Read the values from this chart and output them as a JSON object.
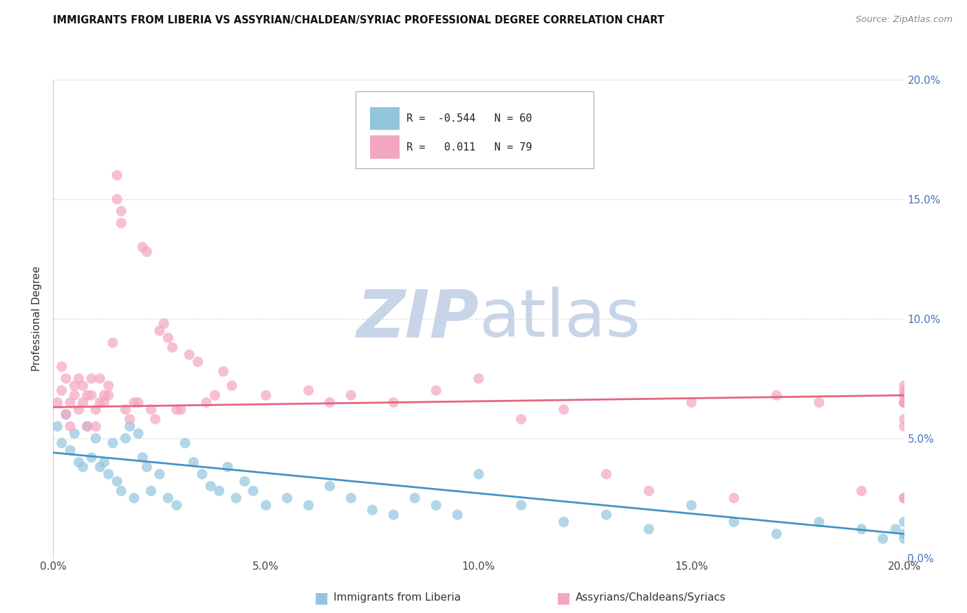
{
  "title": "IMMIGRANTS FROM LIBERIA VS ASSYRIAN/CHALDEAN/SYRIAC PROFESSIONAL DEGREE CORRELATION CHART",
  "source": "Source: ZipAtlas.com",
  "ylabel": "Professional Degree",
  "xmin": 0.0,
  "xmax": 0.2,
  "ymin": 0.0,
  "ymax": 0.2,
  "yticks": [
    0.0,
    0.05,
    0.1,
    0.15,
    0.2
  ],
  "xticks": [
    0.0,
    0.05,
    0.1,
    0.15,
    0.2
  ],
  "ytick_labels_right": [
    "0.0%",
    "5.0%",
    "10.0%",
    "15.0%",
    "20.0%"
  ],
  "xtick_labels": [
    "0.0%",
    "5.0%",
    "10.0%",
    "15.0%",
    "20.0%"
  ],
  "R_blue": -0.544,
  "N_blue": 60,
  "R_pink": 0.011,
  "N_pink": 79,
  "color_blue": "#92c5de",
  "color_pink": "#f4a6c0",
  "legend_blue": "Immigrants from Liberia",
  "legend_pink": "Assyrians/Chaldeans/Syriacs",
  "trendline_blue_color": "#4393c3",
  "trendline_pink_color": "#e8637c",
  "watermark_color": "#c8d4e8",
  "blue_scatter_x": [
    0.001,
    0.002,
    0.003,
    0.004,
    0.005,
    0.006,
    0.007,
    0.008,
    0.009,
    0.01,
    0.011,
    0.012,
    0.013,
    0.014,
    0.015,
    0.016,
    0.017,
    0.018,
    0.019,
    0.02,
    0.021,
    0.022,
    0.023,
    0.025,
    0.027,
    0.029,
    0.031,
    0.033,
    0.035,
    0.037,
    0.039,
    0.041,
    0.043,
    0.045,
    0.047,
    0.05,
    0.055,
    0.06,
    0.065,
    0.07,
    0.075,
    0.08,
    0.085,
    0.09,
    0.095,
    0.1,
    0.11,
    0.12,
    0.13,
    0.14,
    0.15,
    0.16,
    0.17,
    0.18,
    0.19,
    0.195,
    0.198,
    0.2,
    0.2,
    0.2
  ],
  "blue_scatter_y": [
    0.055,
    0.048,
    0.06,
    0.045,
    0.052,
    0.04,
    0.038,
    0.055,
    0.042,
    0.05,
    0.038,
    0.04,
    0.035,
    0.048,
    0.032,
    0.028,
    0.05,
    0.055,
    0.025,
    0.052,
    0.042,
    0.038,
    0.028,
    0.035,
    0.025,
    0.022,
    0.048,
    0.04,
    0.035,
    0.03,
    0.028,
    0.038,
    0.025,
    0.032,
    0.028,
    0.022,
    0.025,
    0.022,
    0.03,
    0.025,
    0.02,
    0.018,
    0.025,
    0.022,
    0.018,
    0.035,
    0.022,
    0.015,
    0.018,
    0.012,
    0.022,
    0.015,
    0.01,
    0.015,
    0.012,
    0.008,
    0.012,
    0.015,
    0.01,
    0.008
  ],
  "pink_scatter_x": [
    0.001,
    0.002,
    0.002,
    0.003,
    0.003,
    0.004,
    0.004,
    0.005,
    0.005,
    0.006,
    0.006,
    0.007,
    0.007,
    0.008,
    0.008,
    0.009,
    0.009,
    0.01,
    0.01,
    0.011,
    0.011,
    0.012,
    0.012,
    0.013,
    0.013,
    0.014,
    0.015,
    0.015,
    0.016,
    0.016,
    0.017,
    0.018,
    0.019,
    0.02,
    0.021,
    0.022,
    0.023,
    0.024,
    0.025,
    0.026,
    0.027,
    0.028,
    0.029,
    0.03,
    0.032,
    0.034,
    0.036,
    0.038,
    0.04,
    0.042,
    0.05,
    0.06,
    0.065,
    0.07,
    0.08,
    0.09,
    0.1,
    0.11,
    0.12,
    0.13,
    0.14,
    0.15,
    0.16,
    0.17,
    0.18,
    0.19,
    0.2,
    0.2,
    0.2,
    0.2,
    0.2,
    0.2,
    0.2,
    0.2,
    0.2,
    0.2,
    0.2,
    0.2,
    0.2
  ],
  "pink_scatter_y": [
    0.065,
    0.07,
    0.08,
    0.075,
    0.06,
    0.055,
    0.065,
    0.068,
    0.072,
    0.062,
    0.075,
    0.065,
    0.072,
    0.068,
    0.055,
    0.068,
    0.075,
    0.062,
    0.055,
    0.065,
    0.075,
    0.068,
    0.065,
    0.072,
    0.068,
    0.09,
    0.15,
    0.16,
    0.145,
    0.14,
    0.062,
    0.058,
    0.065,
    0.065,
    0.13,
    0.128,
    0.062,
    0.058,
    0.095,
    0.098,
    0.092,
    0.088,
    0.062,
    0.062,
    0.085,
    0.082,
    0.065,
    0.068,
    0.078,
    0.072,
    0.068,
    0.07,
    0.065,
    0.068,
    0.065,
    0.07,
    0.075,
    0.058,
    0.062,
    0.035,
    0.028,
    0.065,
    0.025,
    0.068,
    0.065,
    0.028,
    0.065,
    0.025,
    0.068,
    0.065,
    0.07,
    0.065,
    0.055,
    0.025,
    0.058,
    0.065,
    0.068,
    0.072,
    0.065
  ],
  "trend_blue_x0": 0.0,
  "trend_blue_x1": 0.2,
  "trend_blue_y0": 0.044,
  "trend_blue_y1": 0.01,
  "trend_pink_x0": 0.0,
  "trend_pink_x1": 0.2,
  "trend_pink_y0": 0.063,
  "trend_pink_y1": 0.068
}
